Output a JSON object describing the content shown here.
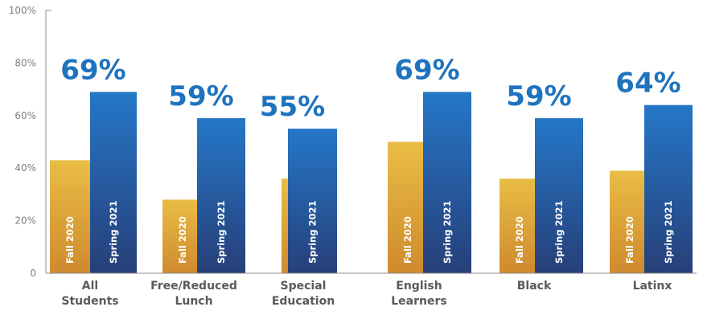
{
  "chart_data": {
    "type": "bar",
    "categories": [
      [
        "All",
        "Students"
      ],
      [
        "Free/Reduced",
        "Lunch"
      ],
      [
        "Special",
        "Education"
      ],
      [
        "English",
        "Learners"
      ],
      [
        "Black"
      ],
      [
        "Latinx"
      ]
    ],
    "series": [
      {
        "name": "Fall 2020",
        "values": [
          43,
          28,
          36,
          50,
          36,
          39
        ],
        "color": "#e8b53e"
      },
      {
        "name": "Spring 2021",
        "values": [
          69,
          59,
          55,
          69,
          59,
          64
        ],
        "color": "#1f5fa8"
      }
    ],
    "data_labels": [
      "69%",
      "59%",
      "55%",
      "69%",
      "59%",
      "64%"
    ],
    "y_ticks": [
      "0",
      "20%",
      "40%",
      "60%",
      "80%",
      "100%"
    ],
    "ylim": [
      0,
      100
    ],
    "grid": false,
    "colors": {
      "fall_top": "#e9bd45",
      "fall_bottom": "#cf8a2f",
      "spring_top": "#2577c8",
      "spring_bottom": "#273f78",
      "label": "#1e73be"
    }
  }
}
